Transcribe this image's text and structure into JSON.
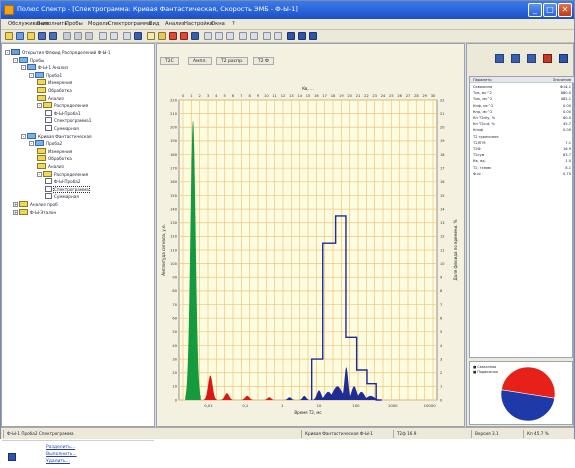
{
  "window": {
    "title": "Полюс Спектр - [Спектрограмма: Кривая Фантастическая, Скорость ЭМБ - Ф-Ы-1]",
    "min_label": "_",
    "max_label": "□",
    "close_label": "✕"
  },
  "menu": [
    "Обслуживание",
    "Выполнить",
    "Пробы",
    "Модели",
    "Спектрограмма",
    "Вид",
    "Анализ",
    "Настройки",
    "Окна",
    "?"
  ],
  "tree": {
    "nodes": [
      {
        "text": "Открытия Флюид Распределений Ф-Ы-1",
        "indent": 0,
        "icon": "root",
        "pm": "-"
      },
      {
        "text": "Пробы",
        "indent": 1,
        "icon": "grp",
        "pm": "-"
      },
      {
        "text": "Ф-Ы-1 Анализ",
        "indent": 2,
        "icon": "grp",
        "pm": "-"
      },
      {
        "text": "Проба1",
        "indent": 3,
        "icon": "grp",
        "pm": "-"
      },
      {
        "text": "Измерения",
        "indent": 4,
        "icon": "fold",
        "pm": ""
      },
      {
        "text": "Обработка",
        "indent": 4,
        "icon": "fold",
        "pm": ""
      },
      {
        "text": "Анализ",
        "indent": 4,
        "icon": "fold",
        "pm": ""
      },
      {
        "text": "Распределения",
        "indent": 4,
        "icon": "fold",
        "pm": "-"
      },
      {
        "text": "Ф-Ы-Проба1",
        "indent": 5,
        "icon": "doc",
        "pm": ""
      },
      {
        "text": "Спектрограмма1",
        "indent": 5,
        "icon": "doc",
        "pm": ""
      },
      {
        "text": "Суммарная",
        "indent": 5,
        "icon": "doc",
        "pm": ""
      },
      {
        "text": "Кривая Фантастическая",
        "indent": 2,
        "icon": "grp",
        "pm": "-"
      },
      {
        "text": "Проба2",
        "indent": 3,
        "icon": "grp",
        "pm": "-"
      },
      {
        "text": "Измерения",
        "indent": 4,
        "icon": "fold",
        "pm": ""
      },
      {
        "text": "Обработка",
        "indent": 4,
        "icon": "fold",
        "pm": ""
      },
      {
        "text": "Анализ",
        "indent": 4,
        "icon": "fold",
        "pm": ""
      },
      {
        "text": "Распределения",
        "indent": 4,
        "icon": "fold",
        "pm": "-"
      },
      {
        "text": "Ф-Ы-Проба2",
        "indent": 5,
        "icon": "doc",
        "pm": ""
      },
      {
        "text": "Спектрограмма",
        "indent": 5,
        "icon": "doc",
        "pm": "",
        "selected": true
      },
      {
        "text": "Суммарная",
        "indent": 5,
        "icon": "doc",
        "pm": ""
      },
      {
        "text": "Анализ проб",
        "indent": 1,
        "icon": "fold",
        "pm": "+"
      },
      {
        "text": "Ф-Ы-Эталон",
        "indent": 1,
        "icon": "fold",
        "pm": "+"
      }
    ],
    "links": [
      "Разделить...",
      "Выполнить...",
      "Удалить..."
    ]
  },
  "chart_tabs": [
    "T2С",
    "Ампл.",
    "Т2 распр.",
    "Т2 Ф"
  ],
  "chart_data": {
    "type": "histogram",
    "top_axis_label": "Кв, ... ",
    "x_axis_label": "Время Т2, мс",
    "left_axis_label": "Амплитуда сигнала, у.е.",
    "right_axis_label": "Доля флюида по времени, %",
    "x_ticks": [
      "0,01",
      "0,1",
      "1",
      "10",
      "100",
      "1000",
      "10000"
    ],
    "top_ticks": [
      "0",
      "1",
      "2",
      "3",
      "4",
      "5",
      "6",
      "7",
      "8",
      "9",
      "10",
      "11",
      "12",
      "13",
      "14",
      "15",
      "16",
      "17",
      "18",
      "19",
      "20",
      "21",
      "22",
      "23",
      "24",
      "25",
      "26",
      "27",
      "28",
      "29",
      "30"
    ],
    "y_ticks": [
      "0",
      "10",
      "20",
      "30",
      "40",
      "50",
      "60",
      "70",
      "80",
      "90",
      "100",
      "110",
      "120",
      "130",
      "140",
      "150",
      "160",
      "170",
      "180",
      "190",
      "200",
      "210",
      "220"
    ],
    "right_ticks": [
      "0",
      "1",
      "2",
      "3",
      "4",
      "5",
      "6",
      "7",
      "8",
      "9",
      "10",
      "11",
      "12",
      "13",
      "14",
      "15",
      "16",
      "17",
      "18",
      "19",
      "20",
      "21",
      "22"
    ],
    "xlim": [
      -2.8,
      4.2
    ],
    "ylim": [
      0,
      220
    ],
    "peaks": [
      {
        "name": "",
        "color": "#159a3e",
        "center": -2.42,
        "width": 0.07,
        "height": 205
      },
      {
        "name": "",
        "color": "#d91a14",
        "center": -1.95,
        "width": 0.06,
        "height": 18
      },
      {
        "name": "",
        "color": "#d91a14",
        "center": -1.5,
        "width": 0.06,
        "height": 5
      },
      {
        "name": "",
        "color": "#d91a14",
        "center": -0.95,
        "width": 0.06,
        "height": 3
      },
      {
        "name": "",
        "color": "#d91a14",
        "center": -0.35,
        "width": 0.05,
        "height": 2
      },
      {
        "name": "",
        "color": "#1e2c96",
        "center": 0.2,
        "width": 0.05,
        "height": 2
      },
      {
        "name": "",
        "color": "#1e2c96",
        "center": 0.6,
        "width": 0.05,
        "height": 3
      },
      {
        "name": "",
        "color": "#1e2c96",
        "center": 1.0,
        "width": 0.06,
        "height": 7
      },
      {
        "name": "",
        "color": "#1e2c96",
        "center": 1.25,
        "width": 0.09,
        "height": 6
      },
      {
        "name": "",
        "color": "#1e2c96",
        "center": 1.5,
        "width": 0.12,
        "height": 10
      },
      {
        "name": "",
        "color": "#1e2c96",
        "center": 1.74,
        "width": 0.05,
        "height": 24
      },
      {
        "name": "",
        "color": "#1e2c96",
        "center": 1.95,
        "width": 0.07,
        "height": 10
      },
      {
        "name": "",
        "color": "#1e2c96",
        "center": 2.15,
        "width": 0.08,
        "height": 6
      },
      {
        "name": "",
        "color": "#1e2c96",
        "center": 2.4,
        "width": 0.1,
        "height": 3
      }
    ],
    "step_outline": {
      "color": "#1e2c96",
      "x": [
        0.8,
        1.1,
        1.45,
        1.73,
        2.02,
        2.3,
        2.55,
        2.7
      ],
      "y": [
        0,
        30,
        115,
        135,
        46,
        22,
        12,
        0
      ]
    }
  },
  "right_panel": {
    "params_header": {
      "name": "Параметр",
      "value": "Значение"
    },
    "params": [
      {
        "name": "Скважина",
        "value": "Ф-Ы-1"
      },
      {
        "name": "Ткв, мс^2",
        "value": "880.0"
      },
      {
        "name": "Тмк, мс^2",
        "value": "482.1"
      },
      {
        "name": "Кпф, мс^2",
        "value": "0.00"
      },
      {
        "name": "Кпр, мс^2",
        "value": "0.00"
      },
      {
        "name": "Кп T2dry, %",
        "value": "60.0"
      },
      {
        "name": "Кп T2cut, %",
        "value": "45.7"
      },
      {
        "name": "Кпэф",
        "value": "0.00"
      },
      {
        "name": "Т2 граничное",
        "value": ""
      },
      {
        "name": "Т2ЛГМ",
        "value": "7.1"
      },
      {
        "name": "Т2Ф",
        "value": "16.9"
      },
      {
        "name": "Т2сум",
        "value": "83.7"
      },
      {
        "name": "Кв, ед.",
        "value": "1.0"
      },
      {
        "name": "Т2, тсммк",
        "value": "8.1"
      },
      {
        "name": "Ф-Ы",
        "value": "0.70"
      }
    ],
    "pie": {
      "slices": [
        {
          "name": "",
          "value": 50,
          "color": "#e8201a"
        },
        {
          "name": "",
          "value": 50,
          "color": "#1e3aa8"
        }
      ],
      "legend": [
        "■ Связанная",
        "■ Подвижная"
      ]
    }
  },
  "status": [
    "Ф-Ы-1  Проба2  Спектрограмма",
    "Кривая Фантастическая  Ф-Ы-1",
    "Т2ф 16.9",
    "Версия 3.1",
    "Кп 45.7 %"
  ],
  "colors": {
    "title_bg": "#1c4fc8",
    "plot_bg": "#fdfbe0",
    "grid": "#f0c77a",
    "green": "#159a3e",
    "red": "#d91a14",
    "blue": "#1e2c96"
  }
}
